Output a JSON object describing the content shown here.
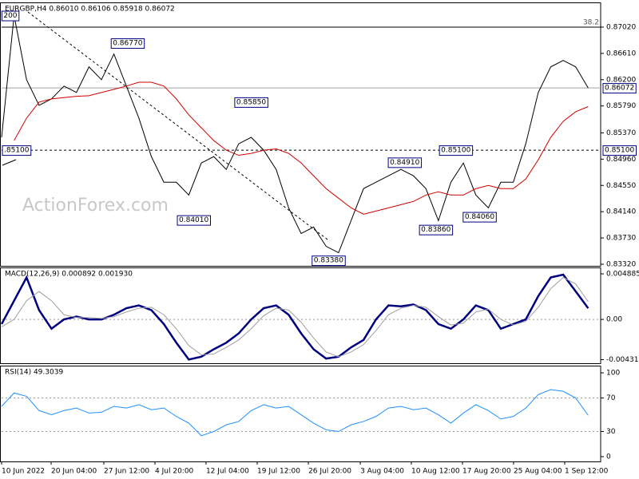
{
  "chart_data": [
    {
      "type": "line",
      "title": "EURGBP,H4  0.86010 0.86106 0.85918 0.86072",
      "watermark": "ActionForex.com",
      "x": [
        0,
        1,
        2,
        3,
        4,
        5,
        6,
        7,
        8,
        9,
        10,
        11,
        12,
        13,
        14,
        15,
        16,
        17,
        18,
        19,
        20,
        21,
        22,
        23,
        24,
        25,
        26,
        27,
        28,
        29,
        30,
        31,
        32,
        33,
        34,
        35,
        36,
        37,
        38,
        39,
        40,
        41,
        42,
        43,
        44,
        45,
        46,
        47
      ],
      "xlim": [
        0,
        48
      ],
      "xticks": [
        {
          "value": 0,
          "label": "10 Jun 2022"
        },
        {
          "value": 3.97,
          "label": "20 Jun 04:00"
        },
        {
          "value": 8.19,
          "label": "27 Jun 12:00"
        },
        {
          "value": 12.29,
          "label": "4 Jul 20:00"
        },
        {
          "value": 16.38,
          "label": "12 Jul 04:00"
        },
        {
          "value": 20.48,
          "label": "19 Jul 12:00"
        },
        {
          "value": 24.58,
          "label": "26 Jul 20:00"
        },
        {
          "value": 28.74,
          "label": "3 Aug 04:00"
        },
        {
          "value": 32.83,
          "label": "10 Aug 12:00"
        },
        {
          "value": 36.93,
          "label": "17 Aug 20:00"
        },
        {
          "value": 41.02,
          "label": "25 Aug 04:00"
        },
        {
          "value": 45.12,
          "label": "1 Sep 12:00"
        }
      ],
      "ylim": [
        0.83295,
        0.87381
      ],
      "yticks": [
        {
          "value": 0.8702,
          "label": "0.87020"
        },
        {
          "value": 0.8661,
          "label": "0.86610"
        },
        {
          "value": 0.862,
          "label": "0.86200"
        },
        {
          "value": 0.8579,
          "label": "0.85790"
        },
        {
          "value": 0.8537,
          "label": "0.85370"
        },
        {
          "value": 0.8496,
          "label": "0.84960"
        },
        {
          "value": 0.8455,
          "label": "0.84550"
        },
        {
          "value": 0.8414,
          "label": "0.84140"
        },
        {
          "value": 0.8373,
          "label": "0.83730"
        },
        {
          "value": 0.8332,
          "label": "0.83320"
        }
      ],
      "series": [
        {
          "color": "#000000",
          "values": [
            0.853,
            0.872,
            0.862,
            0.858,
            0.859,
            0.861,
            0.86,
            0.864,
            0.862,
            0.866,
            0.861,
            0.856,
            0.85,
            0.846,
            0.846,
            0.844,
            0.849,
            0.85,
            0.848,
            0.852,
            0.853,
            0.851,
            0.848,
            0.842,
            0.838,
            0.839,
            0.836,
            0.835,
            0.84,
            0.845,
            0.846,
            0.847,
            0.848,
            0.847,
            0.845,
            0.84,
            0.846,
            0.849,
            0.844,
            0.842,
            0.846,
            0.846,
            0.852,
            0.86,
            0.864,
            0.865,
            0.864,
            0.86072
          ]
        },
        {
          "color": "#d00000",
          "values": [
            null,
            0.8525,
            0.856,
            0.8585,
            0.859,
            0.8592,
            0.8594,
            0.8595,
            0.86,
            0.8605,
            0.861,
            0.8616,
            0.8616,
            0.861,
            0.859,
            0.8565,
            0.8545,
            0.8525,
            0.851,
            0.8502,
            0.8505,
            0.851,
            0.8512,
            0.8505,
            0.849,
            0.847,
            0.845,
            0.8435,
            0.842,
            0.841,
            0.8415,
            0.842,
            0.8425,
            0.843,
            0.844,
            0.8445,
            0.844,
            0.844,
            0.845,
            0.8455,
            0.845,
            0.845,
            0.8465,
            0.8495,
            0.853,
            0.8555,
            0.857,
            0.8578
          ]
        }
      ],
      "levels": [
        {
          "value": 0.8702,
          "label": "38.2",
          "style": "solid",
          "boxed": false
        },
        {
          "value": 0.851,
          "label": "0.85100",
          "style": "dashed",
          "boxed": true
        },
        {
          "value": 0.86072,
          "label": "0.86072",
          "style": "price",
          "boxed": true
        }
      ],
      "annotations": [
        {
          "label": "200",
          "x": 0.7,
          "value": 0.872
        },
        {
          "label": "0.86770",
          "x": 10.1,
          "value": 0.8677
        },
        {
          "label": "0.85850",
          "x": 20.0,
          "value": 0.8585
        },
        {
          "label": "0.84010",
          "x": 15.4,
          "value": 0.8401
        },
        {
          "label": "0.83380",
          "x": 26.2,
          "value": 0.8338
        },
        {
          "label": "0.84910",
          "x": 32.3,
          "value": 0.8491
        },
        {
          "label": "0.85100",
          "x": 36.4,
          "value": 0.851
        },
        {
          "label": "0.83860",
          "x": 34.8,
          "value": 0.8386
        },
        {
          "label": "0.84060",
          "x": 38.3,
          "value": 0.8406
        },
        {
          "label": ".85100",
          "x": 1.2,
          "value": 0.851
        }
      ]
    },
    {
      "type": "line",
      "title": "MACD(12,26,9) 0.000892 0.001930",
      "ylim": [
        -0.0047,
        0.0054
      ],
      "yticks": [
        0.004885,
        {
          "value": 0,
          "label": "0.00"
        },
        -0.004315
      ],
      "dashed": [
        0
      ],
      "series": [
        {
          "color": "#000080",
          "width": 2.5,
          "values": [
            -0.0005,
            0.002,
            0.0045,
            0.001,
            -0.001,
            0,
            0.0003,
            0,
            0,
            0.0005,
            0.0012,
            0.0015,
            0.001,
            -0.0005,
            -0.0025,
            -0.0043,
            -0.004,
            -0.0032,
            -0.0025,
            -0.0015,
            0,
            0.0012,
            0.0015,
            0.0005,
            -0.0015,
            -0.0032,
            -0.0042,
            -0.004,
            -0.003,
            -0.0022,
            0,
            0.0015,
            0.0014,
            0.0016,
            0.001,
            -0.0005,
            -0.001,
            0,
            0.0015,
            0.001,
            -0.001,
            -0.0005,
            0,
            0.0025,
            0.0045,
            0.0048,
            0.003,
            0.0012
          ]
        },
        {
          "color": "#a0a0a0",
          "width": 1,
          "values": [
            -0.0008,
            0,
            0.002,
            0.003,
            0.002,
            0.0005,
            0.0002,
            0.0002,
            0.0001,
            0.0003,
            0.0008,
            0.0012,
            0.0013,
            0.0005,
            -0.001,
            -0.0028,
            -0.0038,
            -0.0037,
            -0.003,
            -0.0022,
            -0.001,
            0.0004,
            0.0012,
            0.001,
            -0.0003,
            -0.002,
            -0.0035,
            -0.004,
            -0.0035,
            -0.0027,
            -0.0012,
            0.0005,
            0.0012,
            0.0015,
            0.0013,
            0.0003,
            -0.0006,
            -0.0004,
            0.0008,
            0.0011,
            0,
            -0.0006,
            -0.0002,
            0.0013,
            0.0033,
            0.0045,
            0.0038,
            0.0019
          ]
        }
      ]
    },
    {
      "type": "line",
      "title": "RSI(14) 49.3039",
      "ylim": [
        -5.7,
        106.7
      ],
      "yticks": [
        100,
        70,
        30,
        0
      ],
      "dashed": [
        70,
        30
      ],
      "series": [
        {
          "color": "#1e90ff",
          "width": 1,
          "values": [
            60,
            76,
            72,
            55,
            50,
            55,
            58,
            52,
            53,
            60,
            58,
            62,
            56,
            58,
            48,
            40,
            25,
            30,
            38,
            42,
            55,
            62,
            58,
            60,
            50,
            40,
            32,
            30,
            38,
            42,
            48,
            58,
            60,
            56,
            58,
            50,
            40,
            52,
            62,
            55,
            45,
            48,
            58,
            74,
            80,
            78,
            70,
            49.3039
          ]
        }
      ]
    }
  ]
}
